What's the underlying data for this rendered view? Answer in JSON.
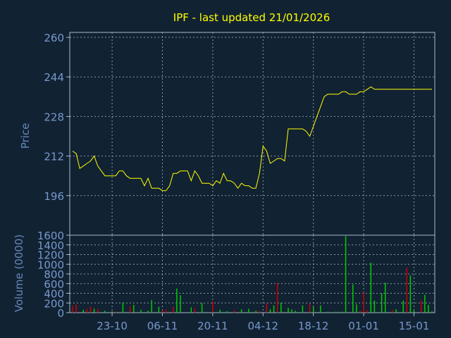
{
  "chart_data": [
    {
      "type": "line",
      "title": "IPF - last updated 21/01/2026",
      "ylabel": "Price",
      "xlabel": "",
      "ylim": [
        180,
        262
      ],
      "yticks": [
        196,
        212,
        228,
        244,
        260
      ],
      "x_ticks": [
        {
          "label": "23-10",
          "x": 11
        },
        {
          "label": "06-11",
          "x": 25
        },
        {
          "label": "20-11",
          "x": 39
        },
        {
          "label": "04-12",
          "x": 53
        },
        {
          "label": "18-12",
          "x": 67
        },
        {
          "label": "01-01",
          "x": 81
        },
        {
          "label": "15-01",
          "x": 95
        }
      ],
      "grid": true,
      "line_color": "#ffff00",
      "series": [
        {
          "name": "",
          "x": [
            0,
            1,
            2,
            3,
            4,
            5,
            6,
            7,
            8,
            9,
            10,
            11,
            12,
            13,
            14,
            15,
            16,
            17,
            18,
            19,
            20,
            21,
            22,
            23,
            24,
            25,
            26,
            27,
            28,
            29,
            30,
            31,
            32,
            33,
            34,
            35,
            36,
            37,
            38,
            39,
            40,
            41,
            42,
            43,
            44,
            45,
            46,
            47,
            48,
            49,
            50,
            51,
            52,
            53,
            54,
            55,
            56,
            57,
            58,
            59,
            60,
            61,
            62,
            63,
            64,
            65,
            66,
            67,
            68,
            69,
            70,
            71,
            72,
            73,
            74,
            75,
            76,
            77,
            78,
            79,
            80,
            81,
            82,
            83,
            84,
            85,
            86,
            87,
            88,
            89,
            90,
            91,
            92,
            93,
            94,
            95,
            96,
            97,
            98,
            99,
            100
          ],
          "values": [
            214,
            213,
            207,
            208,
            209,
            210,
            212,
            208,
            206,
            204,
            204,
            204,
            204,
            206,
            206,
            204,
            203,
            203,
            203,
            203,
            200,
            203,
            199,
            199,
            199,
            198,
            198,
            200,
            205,
            205,
            206,
            206,
            206,
            202,
            206,
            204,
            201,
            201,
            201,
            200,
            202,
            201,
            205,
            202,
            202,
            201,
            199,
            201,
            200,
            200,
            199,
            199,
            205,
            216,
            214,
            209,
            210,
            211,
            211,
            210,
            223,
            223,
            223,
            223,
            223,
            222,
            220,
            224,
            228,
            232,
            236,
            237,
            237,
            237,
            237,
            238,
            238,
            237,
            237,
            237,
            238,
            238,
            239,
            240,
            239,
            239,
            239,
            239,
            239,
            239,
            239,
            239,
            239,
            239,
            239,
            239,
            239,
            239,
            239,
            239,
            239
          ]
        }
      ]
    },
    {
      "type": "bar",
      "ylabel": "Volume (0000)",
      "ylim": [
        0,
        1600
      ],
      "yticks": [
        0,
        200,
        400,
        600,
        800,
        1000,
        1200,
        1400,
        1600
      ],
      "up_color": "#00cc00",
      "down_color": "#cc0000",
      "grid": true,
      "x": [
        0,
        1,
        3,
        4,
        5,
        6,
        7,
        9,
        11,
        12,
        14,
        16,
        17,
        19,
        21,
        22,
        24,
        25,
        26,
        28,
        29,
        30,
        33,
        34,
        36,
        39,
        41,
        43,
        45,
        47,
        49,
        51,
        52,
        54,
        55,
        56,
        57,
        58,
        60,
        61,
        62,
        64,
        66,
        67,
        69,
        71,
        73,
        74,
        75,
        76,
        78,
        79,
        80,
        81,
        82,
        83,
        84,
        86,
        87,
        89,
        90,
        92,
        93,
        94,
        95,
        97,
        98,
        99,
        100
      ],
      "values": [
        140,
        170,
        60,
        80,
        130,
        80,
        80,
        40,
        30,
        30,
        210,
        130,
        160,
        60,
        40,
        260,
        120,
        50,
        60,
        120,
        500,
        360,
        110,
        90,
        200,
        240,
        60,
        30,
        50,
        70,
        80,
        40,
        40,
        200,
        70,
        150,
        620,
        210,
        100,
        70,
        40,
        150,
        190,
        120,
        150,
        20,
        20,
        20,
        20,
        1580,
        580,
        170,
        40,
        420,
        50,
        1030,
        250,
        400,
        620,
        50,
        70,
        250,
        930,
        770,
        40,
        250,
        370,
        160,
        30
      ],
      "colors": [
        "r",
        "r",
        "g",
        "r",
        "r",
        "g",
        "r",
        "g",
        "g",
        "r",
        "g",
        "r",
        "g",
        "g",
        "g",
        "g",
        "g",
        "r",
        "r",
        "r",
        "g",
        "g",
        "g",
        "r",
        "g",
        "r",
        "g",
        "g",
        "r",
        "g",
        "g",
        "g",
        "r",
        "r",
        "g",
        "g",
        "r",
        "g",
        "g",
        "g",
        "g",
        "g",
        "r",
        "g",
        "g",
        "g",
        "g",
        "g",
        "g",
        "g",
        "g",
        "g",
        "r",
        "r",
        "r",
        "g",
        "g",
        "g",
        "g",
        "r",
        "g",
        "g",
        "r",
        "g",
        "g",
        "r",
        "g",
        "g",
        "g"
      ]
    }
  ]
}
